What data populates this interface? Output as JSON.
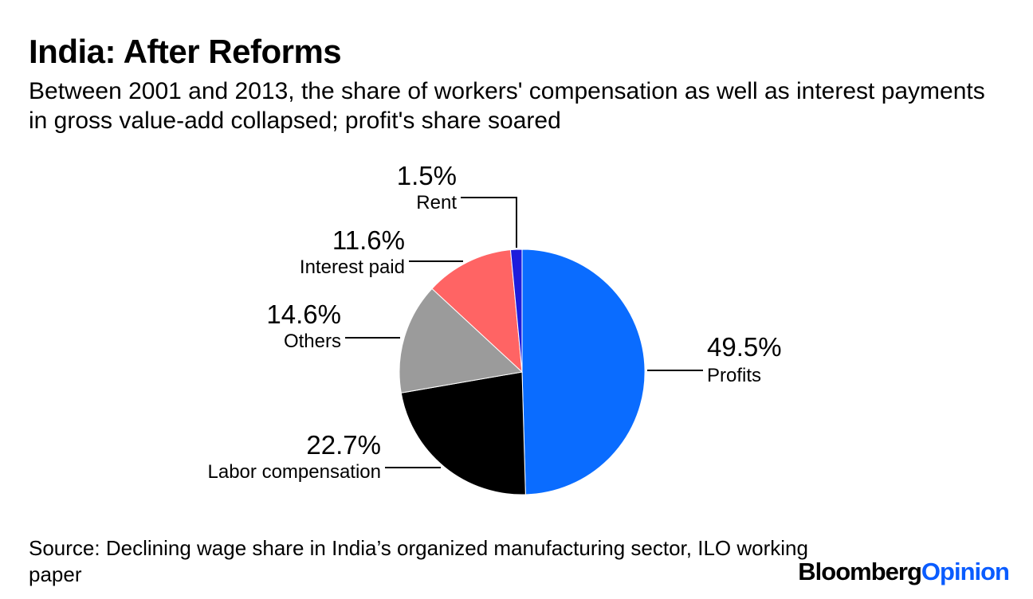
{
  "title": "India: After Reforms",
  "subtitle": "Between 2001 and 2013, the share of workers' compensation as well as interest payments in gross value-add collapsed; profit's share soared",
  "source": "Source: Declining wage share in India’s organized manufacturing sector, ILO working paper",
  "brand": {
    "part1": "Bloomberg",
    "part2": "Opinion",
    "color1": "#000000",
    "color2": "#0a5cff"
  },
  "chart_data": {
    "type": "pie",
    "title": "India: After Reforms",
    "slices": [
      {
        "label": "Profits",
        "value": 49.5,
        "value_label": "49.5%",
        "color": "#0a6cff"
      },
      {
        "label": "Labor compensation",
        "value": 22.7,
        "value_label": "22.7%",
        "color": "#000000"
      },
      {
        "label": "Others",
        "value": 14.6,
        "value_label": "14.6%",
        "color": "#9b9b9b"
      },
      {
        "label": "Interest paid",
        "value": 11.6,
        "value_label": "11.6%",
        "color": "#ff6464"
      },
      {
        "label": "Rent",
        "value": 1.5,
        "value_label": "1.5%",
        "color": "#1c1cdc"
      }
    ],
    "start": "12 o'clock",
    "direction": "clockwise",
    "legend": "none"
  }
}
